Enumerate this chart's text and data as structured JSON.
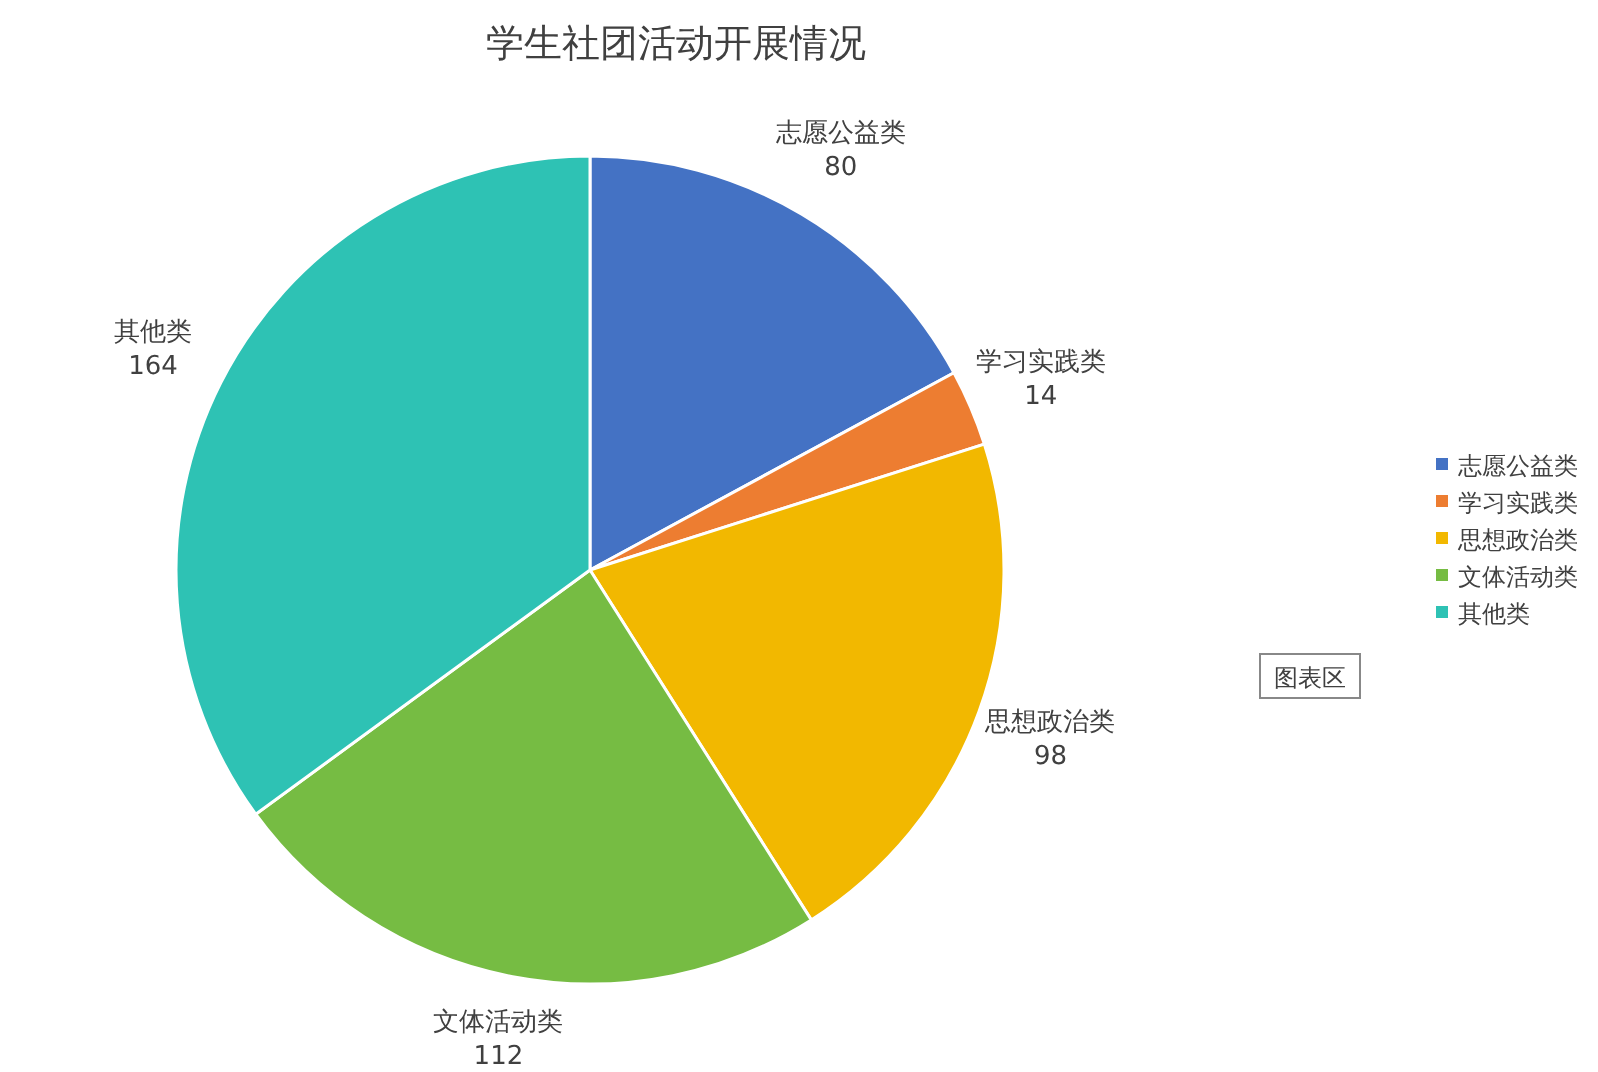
{
  "chart_data": {
    "type": "pie",
    "title": "学生社团活动开展情况",
    "categories": [
      "志愿公益类",
      "学习实践类",
      "思想政治类",
      "文体活动类",
      "其他类"
    ],
    "values": [
      80,
      14,
      98,
      112,
      164
    ],
    "colors": [
      "#4472c4",
      "#ed7d31",
      "#f2b800",
      "#76bc43",
      "#2ec2b4"
    ],
    "data_labels": true,
    "legend": "right",
    "annotations": [
      "图表区"
    ]
  }
}
